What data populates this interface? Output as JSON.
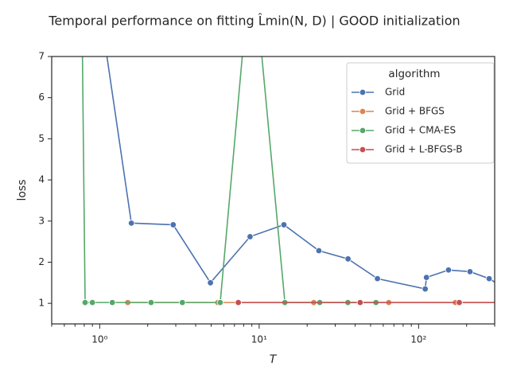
{
  "chart_data": {
    "type": "line",
    "title": "Temporal performance on fitting L̂min(N, D) | GOOD initialization",
    "x_label": "T",
    "y_label": "loss",
    "log_x": true,
    "xlim": [
      0.5,
      300
    ],
    "xticks": [
      {
        "value": 1,
        "label": "10⁰"
      },
      {
        "value": 10,
        "label": "10¹"
      },
      {
        "value": 100,
        "label": "10²"
      }
    ],
    "xminorticks": [
      0.5,
      0.6,
      0.7,
      0.8,
      0.9,
      2,
      3,
      4,
      5,
      6,
      7,
      8,
      9,
      20,
      30,
      40,
      50,
      60,
      70,
      80,
      90,
      200,
      300
    ],
    "ylim": [
      0.5,
      7
    ],
    "yticks": [
      1,
      2,
      3,
      4,
      5,
      6,
      7
    ],
    "legend_title": "algorithm",
    "legend_position": "upper right",
    "series": [
      {
        "name": "Grid",
        "color": "#4c72b0",
        "x": [
          1.0,
          1.58,
          2.89,
          4.95,
          8.77,
          14.3,
          23.7,
          36.1,
          55.2,
          110,
          112,
          154,
          210,
          277,
          320
        ],
        "values": [
          8.2,
          2.95,
          2.91,
          1.5,
          2.62,
          2.91,
          2.28,
          2.08,
          1.6,
          1.35,
          1.63,
          1.81,
          1.77,
          1.6,
          1.45
        ]
      },
      {
        "name": "Grid + BFGS",
        "color": "#dd8452",
        "x": [
          1.5,
          5.5,
          22,
          65,
          170,
          320
        ],
        "values": [
          1.02,
          1.02,
          1.02,
          1.02,
          1.02,
          1.02
        ]
      },
      {
        "name": "Grid + CMA-ES",
        "color": "#55a868",
        "x": [
          0.75,
          0.81,
          0.9,
          1.2,
          2.1,
          3.3,
          5.7,
          9.0,
          14.5,
          24,
          36,
          54
        ],
        "values": [
          13,
          1.02,
          1.02,
          1.02,
          1.02,
          1.02,
          1.02,
          9.6,
          1.02,
          1.02,
          1.02,
          1.02
        ]
      },
      {
        "name": "Grid + L-BFGS-B",
        "color": "#c44e52",
        "x": [
          7.4,
          43,
          180,
          320
        ],
        "values": [
          1.02,
          1.02,
          1.02,
          1.02
        ]
      }
    ]
  }
}
